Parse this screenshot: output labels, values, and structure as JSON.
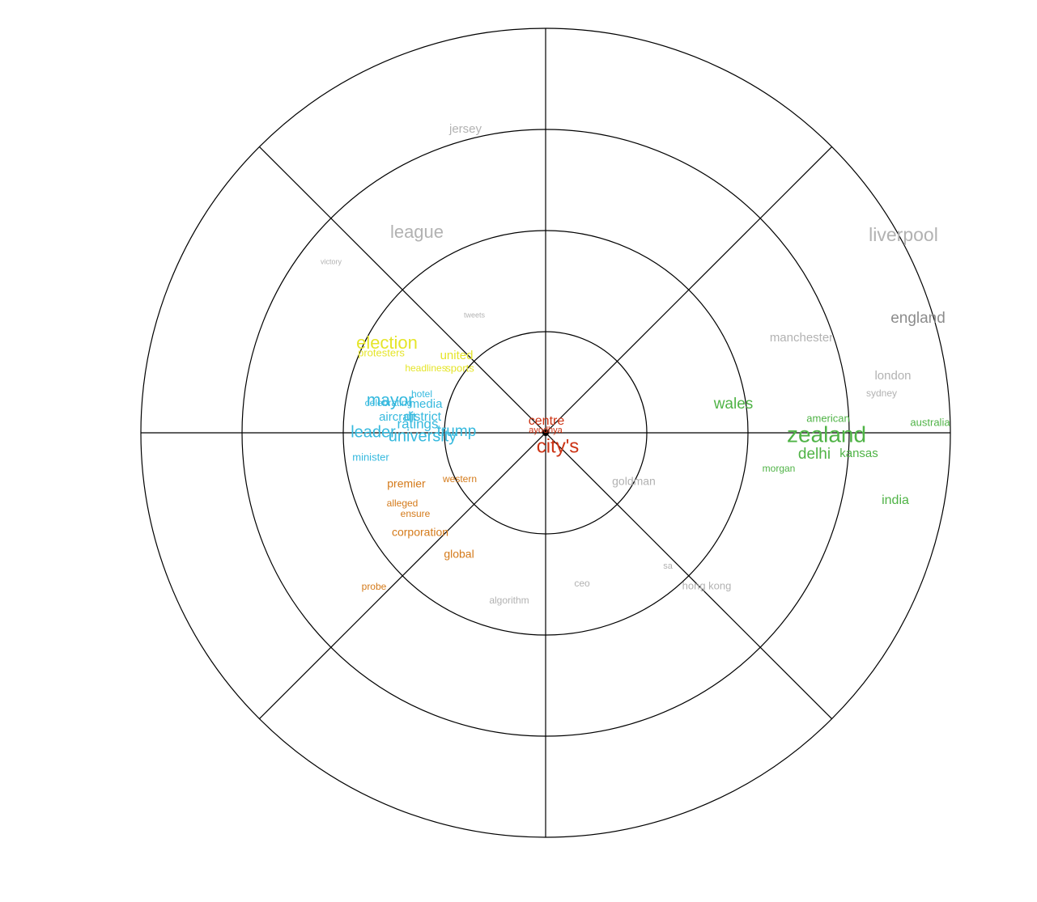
{
  "colors": {
    "background": "#ffffff",
    "grid": "#000000",
    "center_dot": "#000000",
    "red": "#cc3314",
    "yellow": "#e5e52a",
    "cyan": "#35b9de",
    "orange": "#d47a1a",
    "green": "#4fb346",
    "gray": "#b2b2b2",
    "dark_gray": "#8c8c8c"
  },
  "words": [
    {
      "text": "jersey",
      "color": "gray"
    },
    {
      "text": "league",
      "color": "gray"
    },
    {
      "text": "victory",
      "color": "gray"
    },
    {
      "text": "tweets",
      "color": "gray"
    },
    {
      "text": "liverpool",
      "color": "gray"
    },
    {
      "text": "england",
      "color": "dark_gray"
    },
    {
      "text": "manchester",
      "color": "gray"
    },
    {
      "text": "london",
      "color": "gray"
    },
    {
      "text": "sydney",
      "color": "gray"
    },
    {
      "text": "wales",
      "color": "green"
    },
    {
      "text": "american",
      "color": "green"
    },
    {
      "text": "australia",
      "color": "green"
    },
    {
      "text": "zealand",
      "color": "green"
    },
    {
      "text": "delhi",
      "color": "green"
    },
    {
      "text": "kansas",
      "color": "green"
    },
    {
      "text": "morgan",
      "color": "green"
    },
    {
      "text": "india",
      "color": "green"
    },
    {
      "text": "election",
      "color": "yellow"
    },
    {
      "text": "protesters",
      "color": "yellow"
    },
    {
      "text": "united",
      "color": "yellow"
    },
    {
      "text": "headlines",
      "color": "yellow"
    },
    {
      "text": "sports",
      "color": "yellow"
    },
    {
      "text": "hotel",
      "color": "cyan"
    },
    {
      "text": "mayor",
      "color": "cyan"
    },
    {
      "text": "celebrating",
      "color": "cyan"
    },
    {
      "text": "media",
      "color": "cyan"
    },
    {
      "text": "aircraft",
      "color": "cyan"
    },
    {
      "text": "district",
      "color": "cyan"
    },
    {
      "text": "ratings",
      "color": "cyan"
    },
    {
      "text": "leader",
      "color": "cyan"
    },
    {
      "text": "trump",
      "color": "cyan"
    },
    {
      "text": "university",
      "color": "cyan"
    },
    {
      "text": "minister",
      "color": "cyan"
    },
    {
      "text": "centre",
      "color": "red"
    },
    {
      "text": "ayodhya",
      "color": "red"
    },
    {
      "text": "city's",
      "color": "red"
    },
    {
      "text": "western",
      "color": "orange"
    },
    {
      "text": "premier",
      "color": "orange"
    },
    {
      "text": "alleged",
      "color": "orange"
    },
    {
      "text": "ensure",
      "color": "orange"
    },
    {
      "text": "corporation",
      "color": "orange"
    },
    {
      "text": "global",
      "color": "orange"
    },
    {
      "text": "probe",
      "color": "orange"
    },
    {
      "text": "goldman",
      "color": "gray"
    },
    {
      "text": "sa",
      "color": "gray"
    },
    {
      "text": "hong kong",
      "color": "gray"
    },
    {
      "text": "ceo",
      "color": "gray"
    },
    {
      "text": "algorithm",
      "color": "gray"
    }
  ]
}
